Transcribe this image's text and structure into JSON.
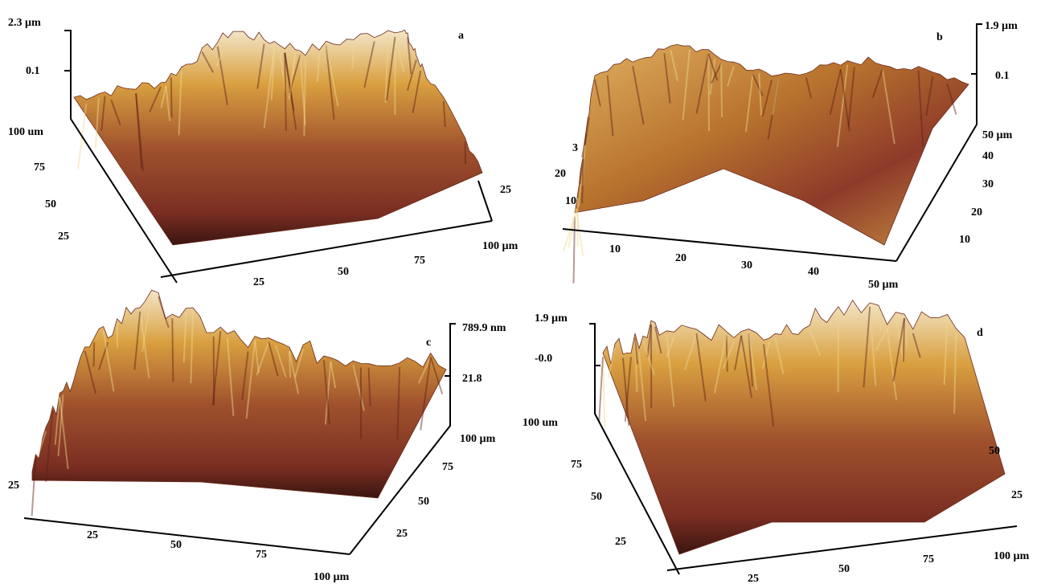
{
  "panels": [
    {
      "label": "a",
      "z_axis": [
        "2.3 µm",
        "0.1"
      ],
      "left_axis": [
        "100 um",
        "75",
        "50",
        "25"
      ],
      "bottom_axis": [
        "25",
        "50",
        "75"
      ],
      "right_axis": [
        "25",
        "100 µm"
      ]
    },
    {
      "label": "b",
      "z_axis": [
        "1.9 µm",
        "0.1"
      ],
      "left_axis": [
        "3",
        "20",
        "10"
      ],
      "bottom_axis": [
        "10",
        "20",
        "30",
        "40",
        "50 µm"
      ],
      "right_axis": [
        "50 µm",
        "40",
        "30",
        "20",
        "10"
      ]
    },
    {
      "label": "c",
      "z_axis": [
        "789.9 nm",
        "21.8"
      ],
      "left_axis": [
        "25"
      ],
      "bottom_axis": [
        "25",
        "50",
        "75",
        "100 µm"
      ],
      "right_axis": [
        "100 µm",
        "75",
        "50",
        "25"
      ]
    },
    {
      "label": "d",
      "z_axis": [
        "1.9 µm",
        "-0.0"
      ],
      "left_axis": [
        "100 um",
        "75",
        "50",
        "25"
      ],
      "bottom_axis": [
        "25",
        "50",
        "75",
        "100 µm"
      ],
      "right_axis": [
        "50",
        "25"
      ]
    }
  ]
}
